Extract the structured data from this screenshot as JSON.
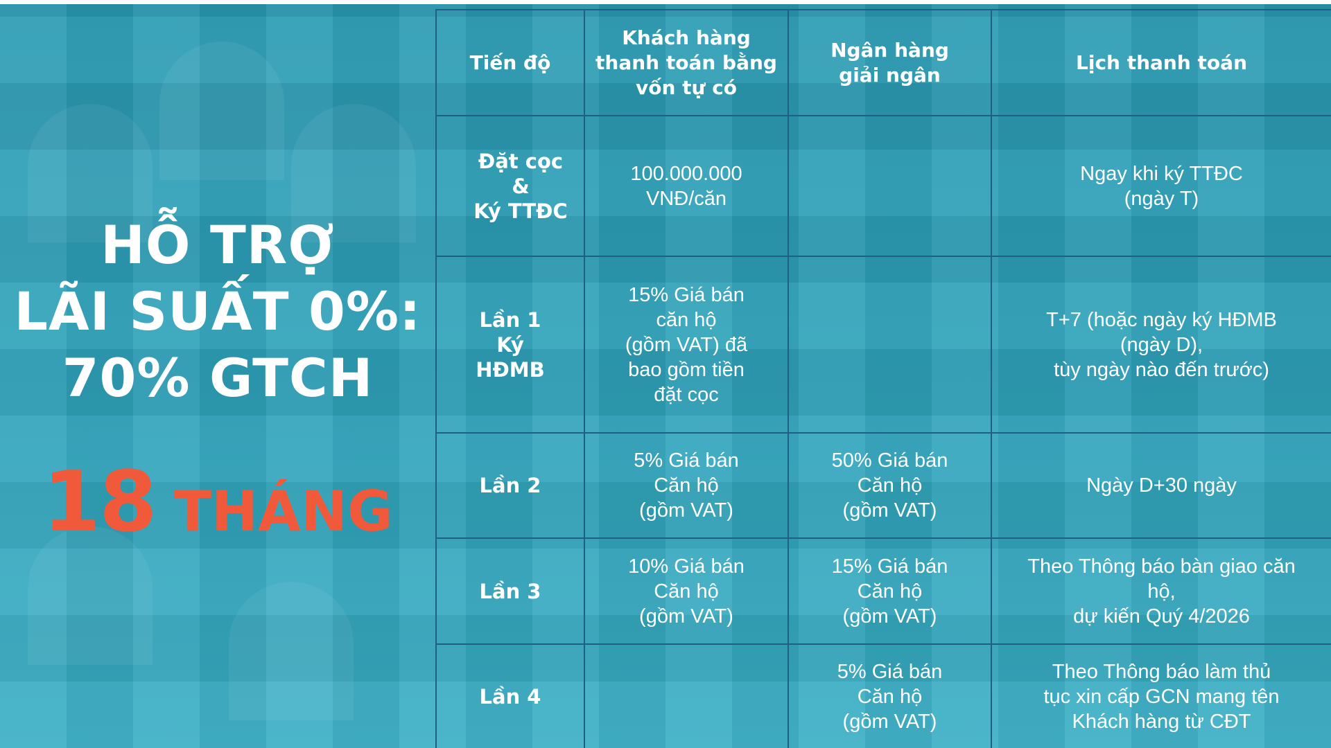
{
  "promo": {
    "headline_line1": "HỖ TRỢ",
    "headline_line2": "LÃI SUẤT 0%:",
    "headline_line3": "70% GTCH",
    "months_number": "18",
    "months_word": "THÁNG",
    "accent_color": "#f05a3a"
  },
  "table": {
    "headers": {
      "stage": "Tiến độ",
      "customer": "Khách hàng\nthanh toán bằng\nvốn tự có",
      "bank": "Ngân hàng\ngiải ngân",
      "schedule": "Lịch thanh toán"
    },
    "rows": [
      {
        "stage": "Đặt cọc\n&\nKý TTĐC",
        "customer": "100.000.000\nVNĐ/căn",
        "bank": "",
        "schedule": "Ngay khi ký TTĐC\n(ngày T)"
      },
      {
        "stage": "Lần 1\nKý\nHĐMB",
        "customer": "15% Giá bán\ncăn hộ\n(gồm VAT) đã\nbao gồm tiền\nđặt cọc",
        "bank": "",
        "schedule": "T+7 (hoặc ngày ký HĐMB\n(ngày D),\ntùy ngày nào đến trước)"
      },
      {
        "stage": "Lần 2",
        "customer": "5% Giá bán\nCăn hộ\n(gồm VAT)",
        "bank": "50% Giá bán\nCăn hộ\n(gồm VAT)",
        "schedule": "Ngày D+30 ngày"
      },
      {
        "stage": "Lần 3",
        "customer": "10%  Giá bán\nCăn hộ\n(gồm VAT)",
        "bank": "15% Giá bán\nCăn hộ\n(gồm VAT)",
        "schedule": "Theo Thông báo bàn giao căn\nhộ,\ndự kiến Quý 4/2026"
      },
      {
        "stage": "Lần 4",
        "customer": "",
        "bank": "5%  Giá bán\nCăn hộ\n(gồm VAT)",
        "schedule": "Theo Thông báo làm thủ\ntục xin cấp GCN mang tên\nKhách hàng từ CĐT"
      }
    ]
  }
}
